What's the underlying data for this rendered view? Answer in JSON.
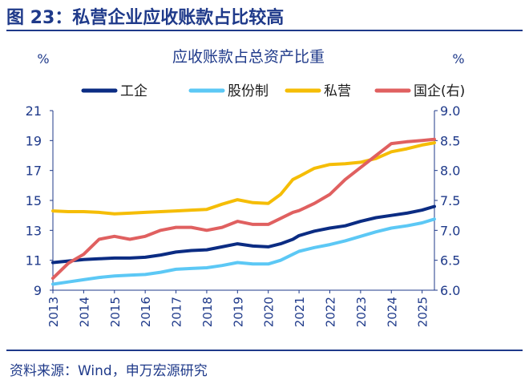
{
  "figure": {
    "title": "图 23：私营企业应收账款占比较高",
    "source": "资料来源：Wind，申万宏源研究"
  },
  "chart_data": {
    "type": "line",
    "title": "应收账款占总资产比重",
    "left_axis_unit": "%",
    "right_axis_unit": "%",
    "ylim_left": [
      9,
      21
    ],
    "yticks_left": [
      "9",
      "11",
      "13",
      "15",
      "17",
      "19",
      "21"
    ],
    "ylim_right": [
      6.0,
      9.0
    ],
    "yticks_right": [
      "6.0",
      "6.5",
      "7.0",
      "7.5",
      "8.0",
      "8.5",
      "9.0"
    ],
    "xlim": [
      2013,
      2025.4
    ],
    "xticks": [
      "2013",
      "2014",
      "2015",
      "2016",
      "2017",
      "2018",
      "2019",
      "2020",
      "2021",
      "2022",
      "2023",
      "2024",
      "2025"
    ],
    "legend_position": "top",
    "series": [
      {
        "name": "工企",
        "axis": "left",
        "color": "#0b2c83",
        "x": [
          2013.0,
          2013.5,
          2014.0,
          2014.5,
          2015.0,
          2015.5,
          2016.0,
          2016.5,
          2017.0,
          2017.5,
          2018.0,
          2018.5,
          2019.0,
          2019.5,
          2020.0,
          2020.4,
          2020.8,
          2021.0,
          2021.5,
          2022.0,
          2022.5,
          2023.0,
          2023.5,
          2024.0,
          2024.5,
          2025.0,
          2025.4
        ],
        "values": [
          10.85,
          10.95,
          11.05,
          11.1,
          11.15,
          11.15,
          11.2,
          11.35,
          11.55,
          11.65,
          11.7,
          11.9,
          12.1,
          11.95,
          11.9,
          12.1,
          12.4,
          12.65,
          12.95,
          13.15,
          13.3,
          13.6,
          13.85,
          14.0,
          14.15,
          14.35,
          14.6
        ]
      },
      {
        "name": "股份制",
        "axis": "left",
        "color": "#5cc8f5",
        "x": [
          2013.0,
          2013.5,
          2014.0,
          2014.5,
          2015.0,
          2015.5,
          2016.0,
          2016.5,
          2017.0,
          2017.5,
          2018.0,
          2018.5,
          2019.0,
          2019.5,
          2020.0,
          2020.4,
          2020.8,
          2021.0,
          2021.5,
          2022.0,
          2022.5,
          2023.0,
          2023.5,
          2024.0,
          2024.5,
          2025.0,
          2025.4
        ],
        "values": [
          9.4,
          9.55,
          9.7,
          9.85,
          9.95,
          10.0,
          10.05,
          10.2,
          10.4,
          10.45,
          10.5,
          10.65,
          10.85,
          10.75,
          10.75,
          11.0,
          11.4,
          11.6,
          11.85,
          12.05,
          12.3,
          12.6,
          12.9,
          13.15,
          13.3,
          13.5,
          13.75
        ]
      },
      {
        "name": "私营",
        "axis": "left",
        "color": "#f5bd06",
        "x": [
          2013.0,
          2013.5,
          2014.0,
          2014.5,
          2015.0,
          2015.5,
          2016.0,
          2016.5,
          2017.0,
          2017.5,
          2018.0,
          2018.5,
          2019.0,
          2019.5,
          2020.0,
          2020.4,
          2020.8,
          2021.0,
          2021.5,
          2022.0,
          2022.5,
          2023.0,
          2023.5,
          2024.0,
          2024.5,
          2025.0,
          2025.4
        ],
        "values": [
          14.3,
          14.25,
          14.25,
          14.2,
          14.1,
          14.15,
          14.2,
          14.25,
          14.3,
          14.35,
          14.4,
          14.75,
          15.05,
          14.85,
          14.8,
          15.4,
          16.4,
          16.6,
          17.15,
          17.4,
          17.45,
          17.55,
          17.8,
          18.25,
          18.45,
          18.7,
          18.85
        ]
      },
      {
        "name": "国企(右)",
        "axis": "right",
        "color": "#e06060",
        "x": [
          2013.0,
          2013.5,
          2014.0,
          2014.5,
          2015.0,
          2015.5,
          2016.0,
          2016.5,
          2017.0,
          2017.5,
          2018.0,
          2018.5,
          2019.0,
          2019.5,
          2020.0,
          2020.4,
          2020.8,
          2021.0,
          2021.5,
          2022.0,
          2022.5,
          2023.0,
          2023.5,
          2024.0,
          2024.5,
          2025.0,
          2025.4
        ],
        "values": [
          6.2,
          6.45,
          6.6,
          6.85,
          6.9,
          6.85,
          6.9,
          7.0,
          7.05,
          7.05,
          7.0,
          7.05,
          7.15,
          7.1,
          7.1,
          7.2,
          7.3,
          7.33,
          7.45,
          7.6,
          7.85,
          8.05,
          8.25,
          8.45,
          8.48,
          8.5,
          8.52
        ]
      }
    ]
  }
}
